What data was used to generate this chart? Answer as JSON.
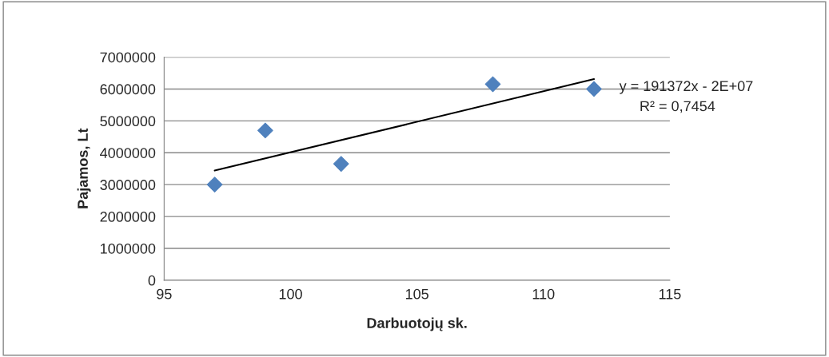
{
  "chart_data": {
    "type": "scatter",
    "xlabel": "Darbuotojų sk.",
    "ylabel": "Pajamos, Lt",
    "xlim": [
      95,
      115
    ],
    "xticks": [
      95,
      100,
      105,
      110,
      115
    ],
    "ylim": [
      0,
      7000000
    ],
    "yticks": [
      0,
      1000000,
      2000000,
      3000000,
      4000000,
      5000000,
      6000000,
      7000000
    ],
    "grid": "y",
    "series": [
      {
        "marker": "diamond",
        "color": "#4f81bd",
        "x": [
          97,
          99,
          102,
          108,
          112
        ],
        "values": [
          3000000,
          4700000,
          3650000,
          6150000,
          6000000
        ]
      },
      {
        "type": "line",
        "marker": "none",
        "color": "#000000",
        "x": [
          97,
          112
        ],
        "values": [
          3440000,
          6310000
        ]
      }
    ],
    "annotations": [
      "y = 191372x - 2E+07",
      "R² = 0,7454"
    ]
  }
}
